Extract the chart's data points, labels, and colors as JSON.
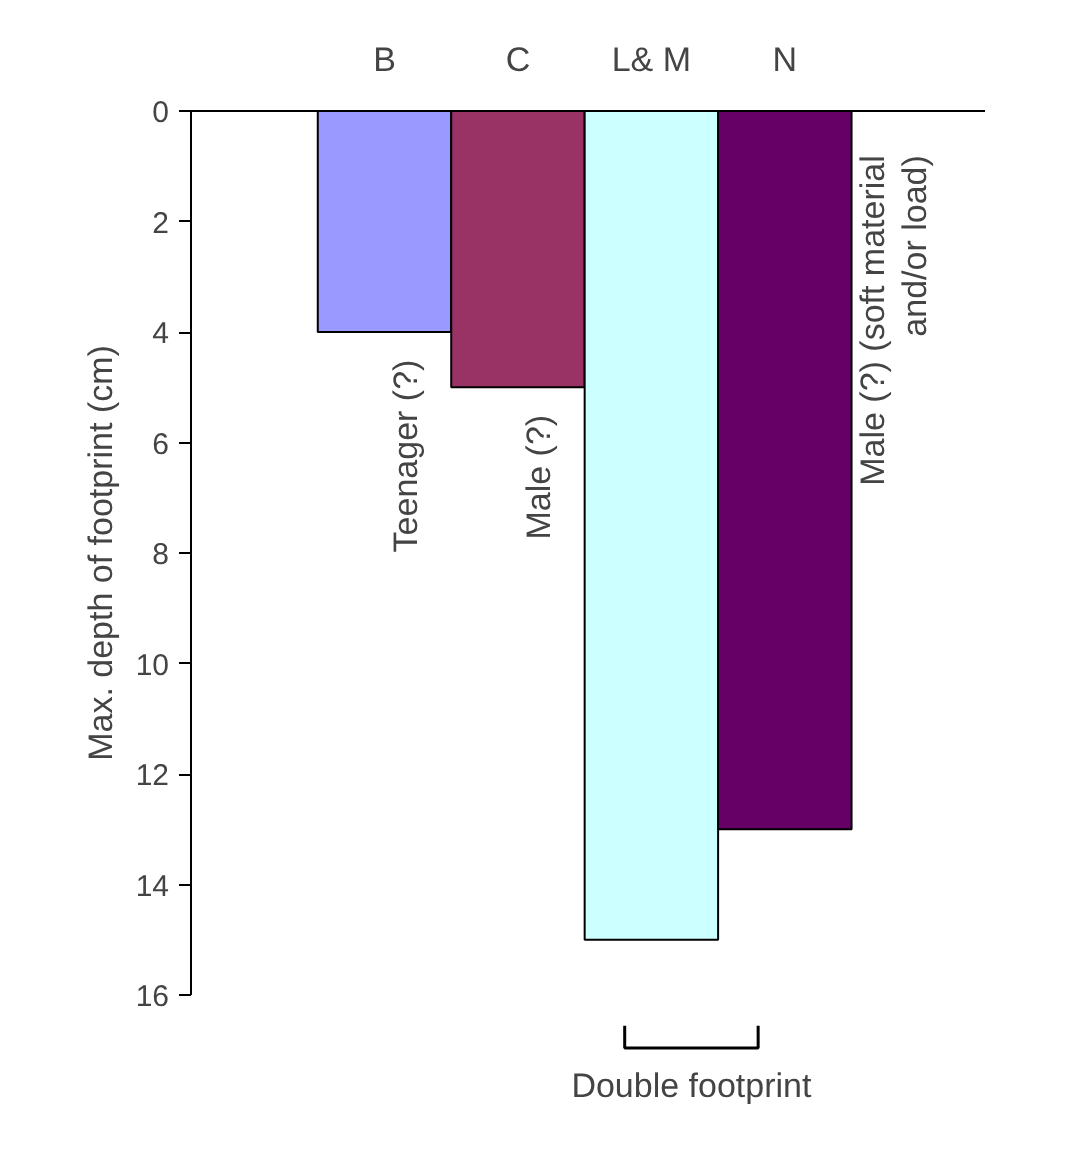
{
  "chart_data": {
    "type": "bar",
    "ylabel": "Max. depth of footprint (cm)",
    "categories": [
      "B",
      "C",
      "L& M",
      "N"
    ],
    "values": [
      4,
      5,
      15,
      13
    ],
    "colors": [
      "#9999ff",
      "#993366",
      "#ccffff",
      "#660066"
    ],
    "ylim": [
      16,
      0
    ],
    "yticks": [
      0,
      2,
      4,
      6,
      8,
      10,
      12,
      14,
      16
    ],
    "grid": false,
    "annotations": [
      {
        "text": "Teenager (?)",
        "x": "B",
        "y": 4
      },
      {
        "text": "Male (?)",
        "x": "C",
        "y": 5
      },
      "Male (?) (soft material\nand/or load)",
      "Double footprint"
    ]
  }
}
